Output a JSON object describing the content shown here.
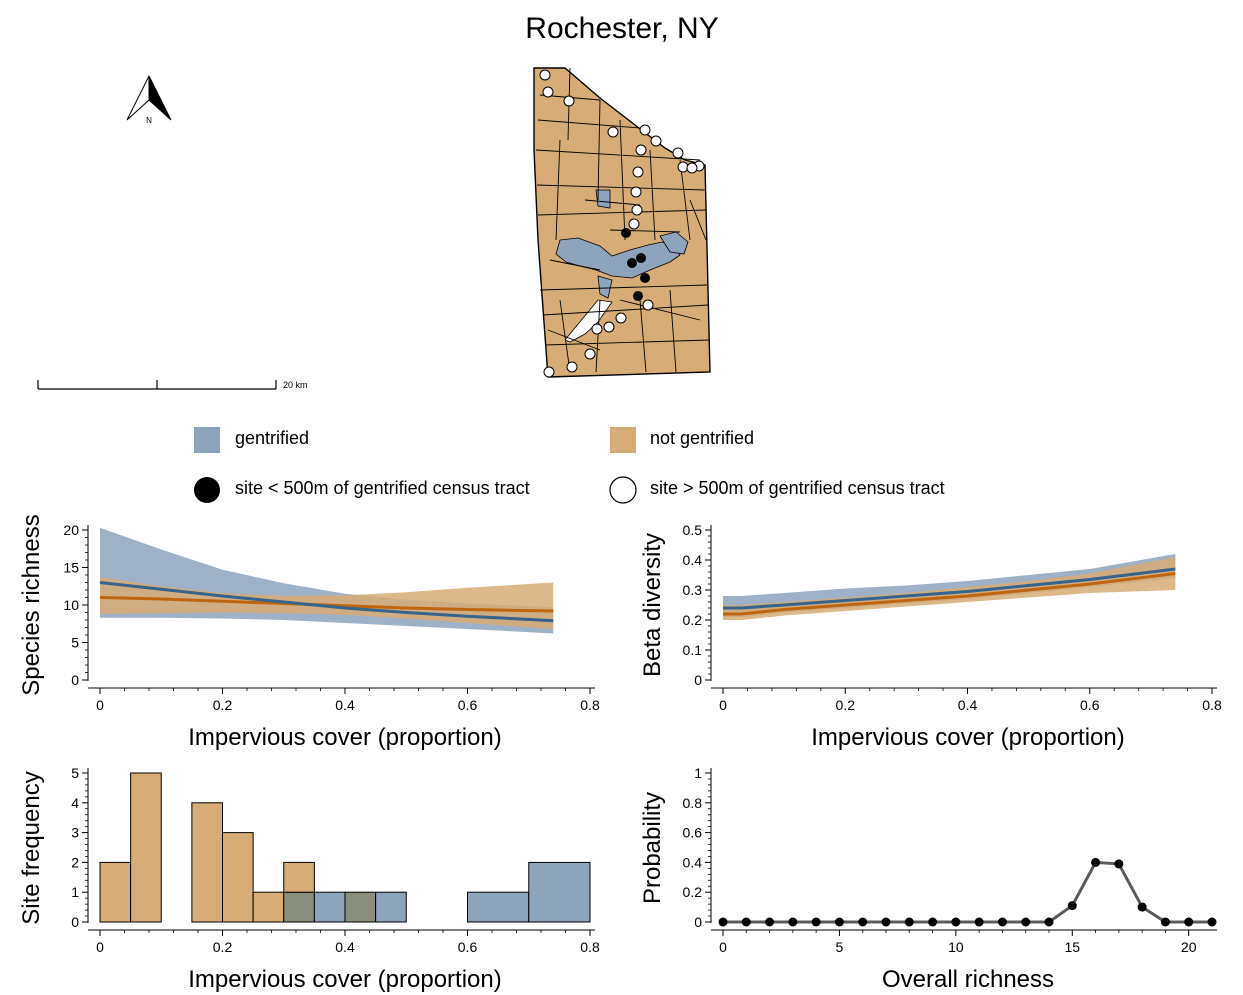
{
  "title": "Rochester, NY",
  "map": {
    "north_label": "N",
    "scale_label": "20 km"
  },
  "colors": {
    "gentrified": "#8ea3bc",
    "not_gentrified": "#d7ac76",
    "gentrified_line": "#36648c",
    "not_gentrified_line": "#c0650f",
    "overlap": "#8a8e7c",
    "point_line": "#5a5a5a"
  },
  "legend": {
    "gentrified": "gentrified",
    "not_gentrified": "not gentrified",
    "site_near": "site < 500m of gentrified census tract",
    "site_far": "site > 500m of gentrified census tract"
  },
  "chart_data": [
    {
      "type": "line",
      "xlabel": "Impervious cover (proportion)",
      "ylabel": "Species richness",
      "xlim": [
        0,
        0.8
      ],
      "ylim": [
        0,
        20
      ],
      "xticks": [
        "0",
        "0.2",
        "0.4",
        "0.6",
        "0.8"
      ],
      "yticks": [
        "0",
        "5",
        "10",
        "15",
        "20"
      ],
      "series": [
        {
          "key": "gentrified",
          "x": [
            0,
            0.1,
            0.2,
            0.3,
            0.4,
            0.5,
            0.6,
            0.74
          ],
          "y": [
            13.0,
            12.1,
            11.2,
            10.4,
            9.6,
            9.0,
            8.5,
            7.9
          ],
          "lower": [
            8.3,
            8.3,
            8.2,
            8.0,
            7.6,
            7.2,
            6.8,
            6.2
          ],
          "upper": [
            20.3,
            17.4,
            14.7,
            12.9,
            11.5,
            10.7,
            10.2,
            9.7
          ]
        },
        {
          "key": "not_gentrified",
          "x": [
            0,
            0.1,
            0.2,
            0.3,
            0.4,
            0.5,
            0.6,
            0.74
          ],
          "y": [
            11.0,
            10.8,
            10.5,
            10.2,
            9.9,
            9.6,
            9.4,
            9.2
          ],
          "lower": [
            8.8,
            8.9,
            9.0,
            8.9,
            8.7,
            8.2,
            7.6,
            6.8
          ],
          "upper": [
            13.7,
            12.5,
            11.6,
            11.2,
            11.3,
            11.7,
            12.3,
            13.0
          ]
        }
      ]
    },
    {
      "type": "line",
      "xlabel": "Impervious cover (proportion)",
      "ylabel": "Beta diversity",
      "xlim": [
        0,
        0.8
      ],
      "ylim": [
        0,
        0.5
      ],
      "xticks": [
        "0",
        "0.2",
        "0.4",
        "0.6",
        "0.8"
      ],
      "yticks": [
        "0",
        "0.1",
        "0.2",
        "0.3",
        "0.4",
        "0.5"
      ],
      "series": [
        {
          "key": "gentrified",
          "x": [
            0,
            0.03,
            0.1,
            0.2,
            0.3,
            0.4,
            0.5,
            0.6,
            0.74
          ],
          "y": [
            0.24,
            0.24,
            0.25,
            0.265,
            0.28,
            0.295,
            0.315,
            0.335,
            0.37
          ],
          "lower": [
            0.21,
            0.21,
            0.225,
            0.24,
            0.255,
            0.27,
            0.29,
            0.31,
            0.34
          ],
          "upper": [
            0.28,
            0.28,
            0.29,
            0.305,
            0.315,
            0.33,
            0.35,
            0.37,
            0.42
          ]
        },
        {
          "key": "not_gentrified",
          "x": [
            0,
            0.03,
            0.1,
            0.2,
            0.3,
            0.4,
            0.5,
            0.6,
            0.74
          ],
          "y": [
            0.22,
            0.22,
            0.235,
            0.25,
            0.265,
            0.28,
            0.3,
            0.32,
            0.355
          ],
          "lower": [
            0.2,
            0.2,
            0.215,
            0.23,
            0.245,
            0.26,
            0.275,
            0.29,
            0.3
          ],
          "upper": [
            0.25,
            0.25,
            0.26,
            0.275,
            0.29,
            0.31,
            0.33,
            0.355,
            0.41
          ]
        }
      ]
    },
    {
      "type": "bar",
      "xlabel": "Impervious cover (proportion)",
      "ylabel": "Site frequency",
      "xlim": [
        0,
        0.8
      ],
      "ylim": [
        0,
        5
      ],
      "xticks": [
        "0",
        "0.2",
        "0.4",
        "0.6",
        "0.8"
      ],
      "yticks": [
        "0",
        "1",
        "2",
        "3",
        "4",
        "5"
      ],
      "bin_edges": [
        0,
        0.05,
        0.1,
        0.15,
        0.2,
        0.25,
        0.3,
        0.35,
        0.4,
        0.45,
        0.5,
        0.6,
        0.7,
        0.8
      ],
      "series": [
        {
          "key": "not_gentrified",
          "values": [
            2,
            5,
            0,
            4,
            3,
            1,
            2,
            0,
            1,
            0,
            0,
            0,
            0
          ]
        },
        {
          "key": "gentrified",
          "values": [
            0,
            0,
            0,
            0,
            0,
            0,
            1,
            1,
            1,
            1,
            0,
            1,
            2
          ]
        }
      ]
    },
    {
      "type": "line",
      "xlabel": "Overall richness",
      "ylabel": "Probability",
      "xlim": [
        0,
        21
      ],
      "ylim": [
        0,
        1
      ],
      "xticks": [
        "0",
        "5",
        "10",
        "15",
        "20"
      ],
      "yticks": [
        "0",
        "0.2",
        "0.4",
        "0.6",
        "0.8",
        "1"
      ],
      "x": [
        0,
        1,
        2,
        3,
        4,
        5,
        6,
        7,
        8,
        9,
        10,
        11,
        12,
        13,
        14,
        15,
        16,
        17,
        18,
        19,
        20,
        21
      ],
      "y": [
        0,
        0,
        0,
        0,
        0,
        0,
        0,
        0,
        0,
        0,
        0,
        0,
        0,
        0,
        0,
        0.11,
        0.4,
        0.39,
        0.1,
        0,
        0,
        0
      ]
    }
  ]
}
